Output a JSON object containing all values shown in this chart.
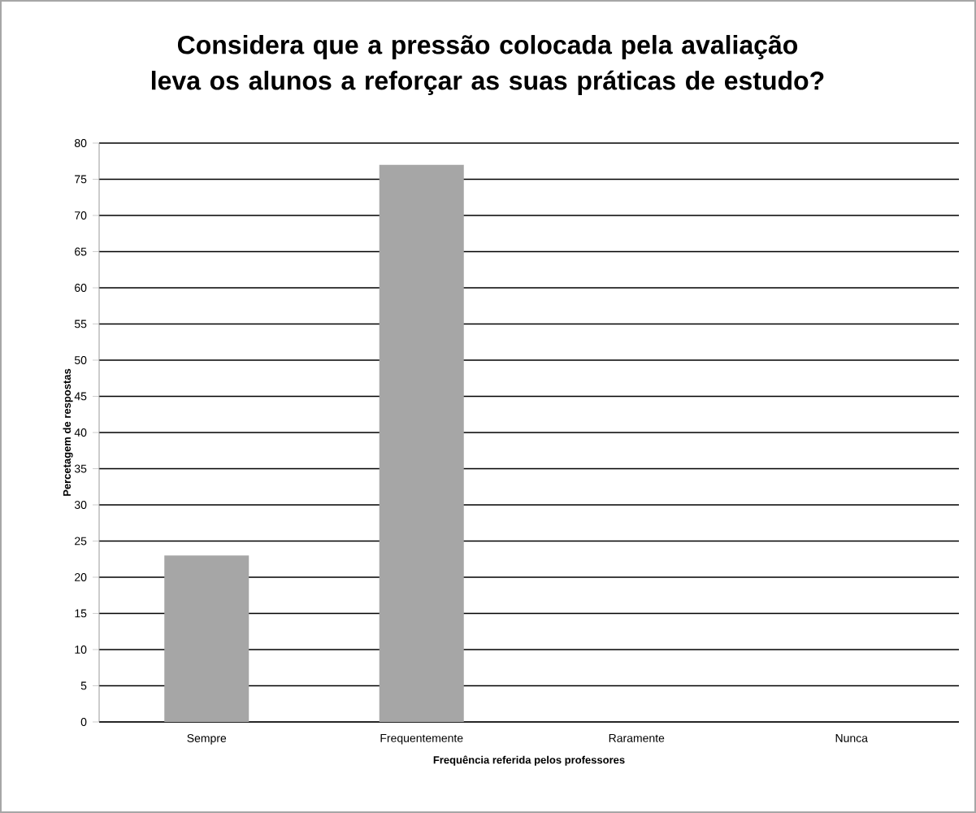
{
  "chart_data": {
    "type": "bar",
    "title": "Considera que a pressão colocada pela avaliação leva os alunos a reforçar as suas práticas de estudo?",
    "xlabel": "Frequência referida pelos professores",
    "ylabel": "Percetagem de respostas",
    "categories": [
      "Sempre",
      "Frequentemente",
      "Raramente",
      "Nunca"
    ],
    "values": [
      23,
      77,
      0,
      0
    ],
    "color": "#a6a6a6",
    "ylim": [
      0,
      80
    ],
    "yticks": [
      0,
      5,
      10,
      15,
      20,
      25,
      30,
      35,
      40,
      45,
      50,
      55,
      60,
      65,
      70,
      75,
      80
    ],
    "grid": "y"
  }
}
